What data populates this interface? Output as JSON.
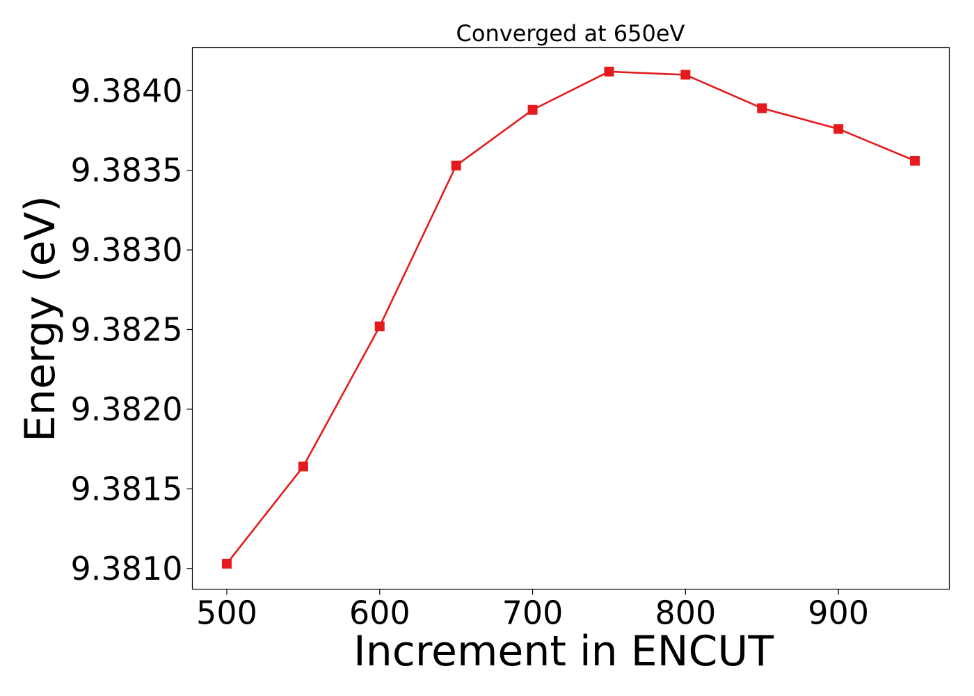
{
  "chart_data": {
    "type": "line",
    "title": "Converged at 650eV",
    "xlabel": "Increment in ENCUT",
    "ylabel": "Energy (eV)",
    "x": [
      500,
      550,
      600,
      650,
      700,
      750,
      800,
      850,
      900,
      950
    ],
    "series": [
      {
        "values": [
          9.38103,
          9.38164,
          9.38252,
          9.38353,
          9.38388,
          9.38412,
          9.3841,
          9.38389,
          9.38376,
          9.38356
        ],
        "color": "#e41a1c",
        "marker": "square"
      }
    ],
    "xticks": [
      500,
      600,
      700,
      800,
      900
    ],
    "xtick_labels": [
      "500",
      "600",
      "700",
      "800",
      "900"
    ],
    "yticks": [
      9.381,
      9.3815,
      9.382,
      9.3825,
      9.383,
      9.3835,
      9.384
    ],
    "ytick_labels": [
      "9.3810",
      "9.3815",
      "9.3820",
      "9.3825",
      "9.3830",
      "9.3835",
      "9.3840"
    ],
    "xlim": [
      477.5,
      972.5
    ],
    "ylim": [
      9.38087,
      9.38427
    ],
    "grid": false,
    "legend": false
  }
}
